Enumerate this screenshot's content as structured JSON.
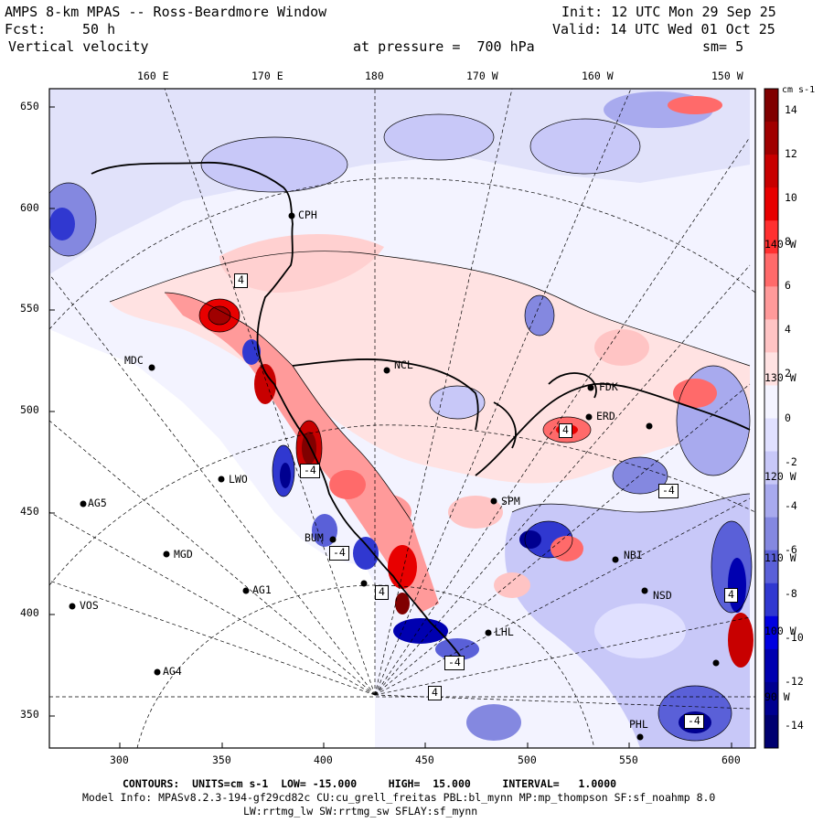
{
  "header": {
    "title": "AMPS 8-km MPAS -- Ross-Beardmore Window",
    "init": "Init: 12 UTC Mon 29 Sep 25",
    "fcst_label": "Fcst:",
    "fcst_value": "50 h",
    "valid": "Valid: 14 UTC Wed 01 Oct 25",
    "field": "Vertical velocity",
    "level": "at pressure =  700 hPa",
    "smoothing": "sm= 5"
  },
  "axes": {
    "top_longitudes": [
      "160 E",
      "170 E",
      "180",
      "170 W",
      "160 W",
      "150 W"
    ],
    "right_longitudes": [
      "140 W",
      "130 W",
      "120 W",
      "110 W",
      "100 W",
      "90 W"
    ],
    "x_ticks": [
      "300",
      "350",
      "400",
      "450",
      "500",
      "550",
      "600"
    ],
    "y_ticks": [
      "650",
      "600",
      "550",
      "500",
      "450",
      "400",
      "350"
    ]
  },
  "colorbar": {
    "units": "cm s-1",
    "labels": [
      "14",
      "12",
      "10",
      "8",
      "6",
      "4",
      "2",
      "0",
      "-2",
      "-4",
      "-6",
      "-8",
      "-10",
      "-12",
      "-14"
    ],
    "palette_colors": [
      "#800000",
      "#a00000",
      "#c80000",
      "#e80000",
      "#ff3030",
      "#ff6a6a",
      "#ff9a9a",
      "#ffc4c4",
      "#ffe2e2",
      "#f4f4ff",
      "#e0e0ff",
      "#c8c8f8",
      "#a8aaee",
      "#8488e0",
      "#5a60d8",
      "#3038d0",
      "#0000e0",
      "#0000b0",
      "#000090",
      "#000070"
    ]
  },
  "stations": [
    {
      "id": "CPH"
    },
    {
      "id": "MDC"
    },
    {
      "id": "NCL"
    },
    {
      "id": "FDK"
    },
    {
      "id": "ERD"
    },
    {
      "id": "LWO"
    },
    {
      "id": "AG5"
    },
    {
      "id": "SPM"
    },
    {
      "id": "MGD"
    },
    {
      "id": "AG1"
    },
    {
      "id": "VOS"
    },
    {
      "id": "AG4"
    },
    {
      "id": "BUM"
    },
    {
      "id": "LHL"
    },
    {
      "id": "NSD"
    },
    {
      "id": "PHL"
    },
    {
      "id": "NBI"
    }
  ],
  "box_labels": [
    "4",
    "-4",
    "4",
    "4",
    "-4",
    "-4",
    "4",
    "-4",
    "-4",
    "4"
  ],
  "footer": {
    "contours": "CONTOURS:  UNITS=cm s-1  LOW= -15.000     HIGH=  15.000     INTERVAL=   1.0000",
    "model_info": "Model Info: MPASv8.2.3-194-gf29cd82c CU:cu_grell_freitas PBL:bl_mynn MP:mp_thompson SF:sf_noahmp 8.0",
    "physics": "LW:rrtmg_lw SW:rrtmg_sw SFLAY:sf_mynn"
  }
}
